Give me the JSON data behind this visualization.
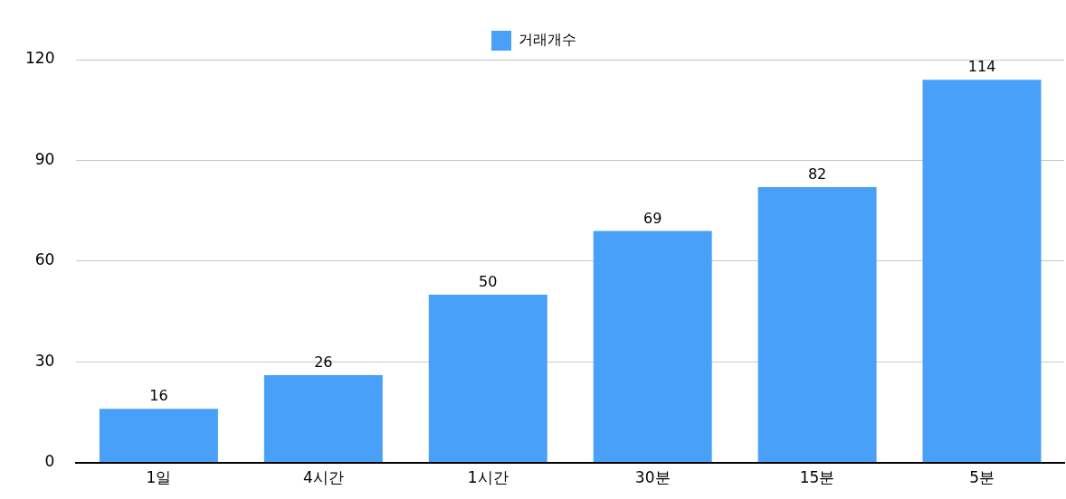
{
  "chart_data": {
    "type": "bar",
    "categories": [
      "1일",
      "4시간",
      "1시간",
      "30분",
      "15분",
      "5분"
    ],
    "series": [
      {
        "name": "거래개수",
        "color": "#48a0f8",
        "values": [
          16,
          26,
          50,
          69,
          82,
          114
        ]
      }
    ],
    "ylim": [
      0,
      120
    ],
    "yticks": [
      0,
      30,
      60,
      90,
      120
    ],
    "grid": "y",
    "legend": "top",
    "data_labels": true
  }
}
